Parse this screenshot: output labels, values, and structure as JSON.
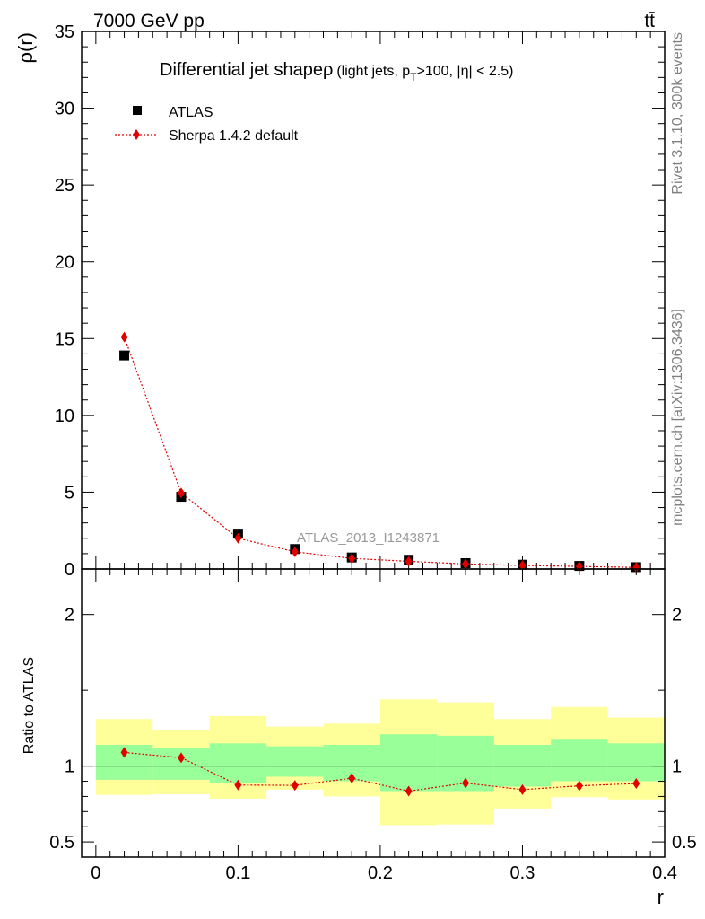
{
  "header": {
    "energy_label": "7000 GeV pp",
    "process_label": "tt̄"
  },
  "side_labels": {
    "rivet": "Rivet 3.1.10,  300k events",
    "mcplots": "mcplots.cern.ch [arXiv:1306.3436]"
  },
  "watermark": "ATLAS_2013_I1243871",
  "chart_data": [
    {
      "type": "scatter",
      "panel": "main",
      "title": "Differential jet shapeρ (light jets, p_T>100, |η| < 2.5)",
      "title_parts": {
        "main": "Differential jet shapeρ",
        "paren_open": "(light jets, p",
        "subscript": "T",
        "paren_close": ">100, |η| < 2.5)"
      },
      "ylabel": "ρ(r)",
      "xlim": [
        -0.01,
        0.4
      ],
      "ylim": [
        0,
        35
      ],
      "x_ticks": [
        0,
        0.1,
        0.2,
        0.3,
        0.4
      ],
      "y_ticks": [
        0,
        5,
        10,
        15,
        20,
        25,
        30,
        35
      ],
      "y_tick_labels": [
        "0",
        "5",
        "10",
        "15",
        "20",
        "25",
        "30",
        "35"
      ],
      "legend": {
        "position": "top-left",
        "entries": [
          "ATLAS",
          "Sherpa 1.4.2 default"
        ]
      },
      "series": [
        {
          "name": "ATLAS",
          "marker": "square",
          "color": "#000000",
          "x": [
            0.02,
            0.06,
            0.1,
            0.14,
            0.18,
            0.22,
            0.26,
            0.3,
            0.34,
            0.38
          ],
          "y": [
            13.9,
            4.7,
            2.3,
            1.3,
            0.75,
            0.6,
            0.38,
            0.28,
            0.2,
            0.12
          ]
        },
        {
          "name": "Sherpa 1.4.2 default",
          "marker": "diamond",
          "line": "dotted",
          "color": "#e00000",
          "x": [
            0.02,
            0.06,
            0.1,
            0.14,
            0.18,
            0.22,
            0.26,
            0.3,
            0.34,
            0.38
          ],
          "y": [
            15.1,
            4.95,
            2.0,
            1.12,
            0.69,
            0.5,
            0.33,
            0.23,
            0.17,
            0.1
          ]
        }
      ]
    },
    {
      "type": "scatter",
      "panel": "ratio",
      "ylabel": "Ratio to ATLAS",
      "xlabel": "r",
      "xlim": [
        -0.01,
        0.4
      ],
      "ylim": [
        0.4,
        2.3
      ],
      "x_ticks": [
        0,
        0.1,
        0.2,
        0.3,
        0.4
      ],
      "x_tick_labels": [
        "0",
        "0.1",
        "0.2",
        "0.3",
        "0.4"
      ],
      "y_ticks": [
        0.5,
        1,
        2
      ],
      "y_tick_labels": [
        "0.5",
        "1",
        "2"
      ],
      "bands": {
        "bin_edges": [
          0,
          0.04,
          0.08,
          0.12,
          0.16,
          0.2,
          0.24,
          0.28,
          0.32,
          0.36,
          0.4
        ],
        "total": {
          "color": "#ffff99",
          "low": [
            0.81,
            0.815,
            0.785,
            0.845,
            0.8,
            0.61,
            0.615,
            0.72,
            0.795,
            0.78
          ],
          "high": [
            1.31,
            1.24,
            1.33,
            1.26,
            1.28,
            1.44,
            1.42,
            1.31,
            1.39,
            1.32
          ]
        },
        "stat": {
          "color": "#99ff99",
          "low": [
            0.91,
            0.91,
            0.89,
            0.93,
            0.9,
            0.835,
            0.835,
            0.865,
            0.9,
            0.9
          ],
          "high": [
            1.14,
            1.12,
            1.15,
            1.13,
            1.14,
            1.21,
            1.2,
            1.14,
            1.18,
            1.15
          ]
        }
      },
      "reference_line": 1,
      "series": [
        {
          "name": "Sherpa 1.4.2 default",
          "marker": "diamond",
          "line": "dotted",
          "color": "#e00000",
          "x": [
            0.02,
            0.06,
            0.1,
            0.14,
            0.18,
            0.22,
            0.26,
            0.3,
            0.34,
            0.38
          ],
          "y": [
            1.09,
            1.055,
            0.875,
            0.873,
            0.92,
            0.835,
            0.888,
            0.845,
            0.87,
            0.885
          ]
        }
      ]
    }
  ]
}
